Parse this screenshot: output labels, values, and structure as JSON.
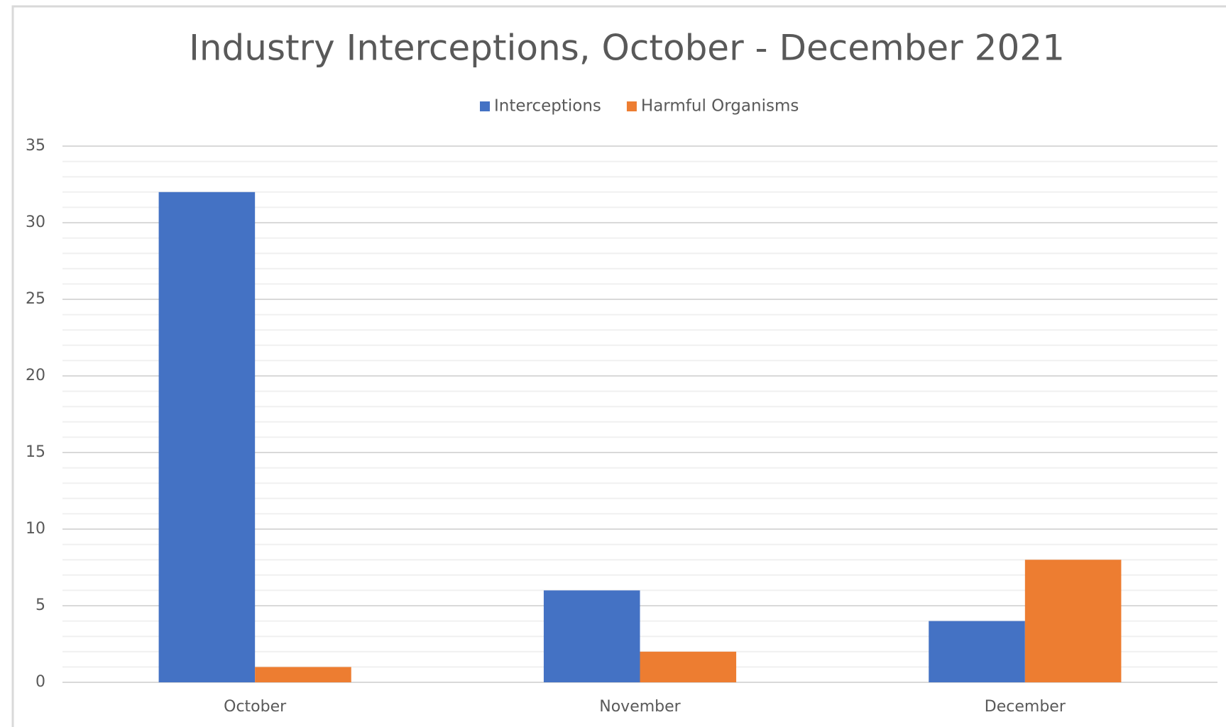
{
  "chart_data": {
    "type": "bar",
    "title": "Industry Interceptions, October - December 2021",
    "categories": [
      "October",
      "November",
      "December"
    ],
    "series": [
      {
        "name": "Interceptions",
        "color": "#4472c4",
        "values": [
          32,
          6,
          4
        ]
      },
      {
        "name": "Harmful Organisms",
        "color": "#ed7d31",
        "values": [
          1,
          2,
          8
        ]
      }
    ],
    "ylim": [
      0,
      35
    ],
    "yticks": [
      0,
      5,
      10,
      15,
      20,
      25,
      30,
      35
    ],
    "grid": true,
    "minor_grid": true,
    "legend": "top"
  }
}
